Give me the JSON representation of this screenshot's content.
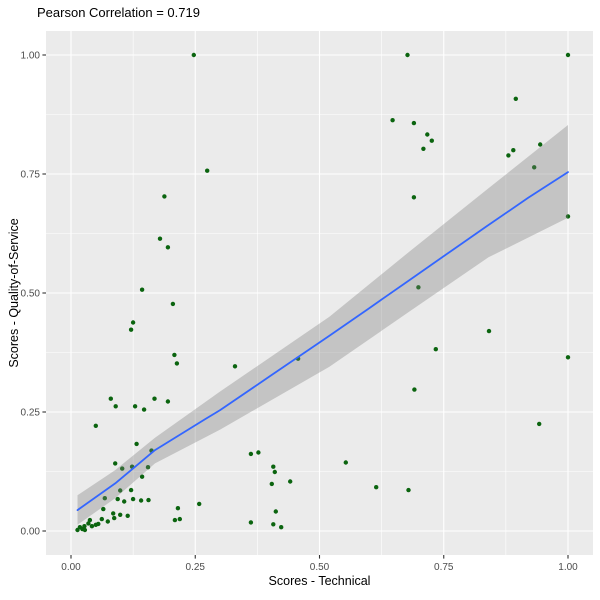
{
  "title": "Pearson Correlation = 0.719",
  "correlation": 0.719,
  "chart_data": {
    "type": "scatter",
    "title": "Pearson Correlation = 0.719",
    "xlabel": "Scores - Technical",
    "ylabel": "Scores - Quality-of-Service",
    "xlim": [
      -0.05,
      1.05
    ],
    "ylim": [
      -0.05,
      1.05
    ],
    "grid": "white-major-minor-on-gray",
    "legend": "none",
    "x_ticks": [
      0,
      0.25,
      0.5,
      0.75,
      1.0
    ],
    "y_ticks": [
      0,
      0.25,
      0.5,
      0.75,
      1.0
    ],
    "x_tick_labels": [
      "0.00",
      "0.25",
      "0.50",
      "0.75",
      "1.00"
    ],
    "y_tick_labels": [
      "0.00",
      "0.25",
      "0.50",
      "0.75",
      "1.00"
    ],
    "minor_ticks": [
      0.125,
      0.375,
      0.625,
      0.875
    ],
    "colors": {
      "panel_bg": "#EBEBEB",
      "grid": "#FFFFFF",
      "point": "#0B640F",
      "trend_line": "#3366FF",
      "band": "rgba(122,122,122,0.35)",
      "tick_label": "#4D4D4D",
      "tick_mark": "#333333",
      "axis_title": "#000000"
    },
    "points": [
      [
        0.05,
        0.221
      ],
      [
        0.132,
        0.183
      ],
      [
        0.162,
        0.169
      ],
      [
        0.089,
        0.142
      ],
      [
        0.103,
        0.131
      ],
      [
        0.123,
        0.135
      ],
      [
        0.155,
        0.134
      ],
      [
        0.143,
        0.114
      ],
      [
        0.099,
        0.085
      ],
      [
        0.121,
        0.086
      ],
      [
        0.068,
        0.069
      ],
      [
        0.094,
        0.067
      ],
      [
        0.107,
        0.062
      ],
      [
        0.125,
        0.067
      ],
      [
        0.141,
        0.064
      ],
      [
        0.156,
        0.065
      ],
      [
        0.258,
        0.057
      ],
      [
        0.215,
        0.048
      ],
      [
        0.065,
        0.046
      ],
      [
        0.085,
        0.037
      ],
      [
        0.099,
        0.034
      ],
      [
        0.114,
        0.032
      ],
      [
        0.087,
        0.027
      ],
      [
        0.062,
        0.025
      ],
      [
        0.074,
        0.02
      ],
      [
        0.209,
        0.023
      ],
      [
        0.219,
        0.025
      ],
      [
        0.038,
        0.023
      ],
      [
        0.035,
        0.016
      ],
      [
        0.027,
        0.01
      ],
      [
        0.042,
        0.01
      ],
      [
        0.05,
        0.013
      ],
      [
        0.055,
        0.015
      ],
      [
        0.018,
        0.008
      ],
      [
        0.023,
        0.004
      ],
      [
        0.028,
        0.002
      ],
      [
        0.013,
        0.002
      ],
      [
        0.247,
        1.0
      ],
      [
        0.274,
        0.757
      ],
      [
        0.188,
        0.703
      ],
      [
        0.179,
        0.614
      ],
      [
        0.195,
        0.596
      ],
      [
        0.143,
        0.507
      ],
      [
        0.205,
        0.477
      ],
      [
        0.125,
        0.438
      ],
      [
        0.121,
        0.423
      ],
      [
        0.208,
        0.37
      ],
      [
        0.213,
        0.352
      ],
      [
        0.08,
        0.278
      ],
      [
        0.09,
        0.262
      ],
      [
        0.129,
        0.262
      ],
      [
        0.147,
        0.255
      ],
      [
        0.168,
        0.278
      ],
      [
        0.195,
        0.272
      ],
      [
        0.677,
        1.0
      ],
      [
        0.647,
        0.863
      ],
      [
        0.33,
        0.346
      ],
      [
        0.457,
        0.362
      ],
      [
        0.362,
        0.162
      ],
      [
        0.377,
        0.165
      ],
      [
        0.407,
        0.135
      ],
      [
        0.41,
        0.124
      ],
      [
        0.404,
        0.099
      ],
      [
        0.441,
        0.104
      ],
      [
        0.553,
        0.144
      ],
      [
        0.614,
        0.092
      ],
      [
        0.679,
        0.086
      ],
      [
        0.412,
        0.041
      ],
      [
        0.362,
        0.018
      ],
      [
        0.407,
        0.014
      ],
      [
        0.423,
        0.008
      ],
      [
        1.0,
        1.0
      ],
      [
        0.895,
        0.908
      ],
      [
        0.69,
        0.857
      ],
      [
        0.717,
        0.833
      ],
      [
        0.726,
        0.82
      ],
      [
        0.709,
        0.803
      ],
      [
        0.944,
        0.812
      ],
      [
        0.89,
        0.8
      ],
      [
        0.88,
        0.789
      ],
      [
        0.932,
        0.764
      ],
      [
        0.69,
        0.701
      ],
      [
        1.0,
        0.661
      ],
      [
        0.699,
        0.512
      ],
      [
        0.841,
        0.42
      ],
      [
        0.734,
        0.382
      ],
      [
        1.0,
        0.365
      ],
      [
        0.691,
        0.297
      ],
      [
        0.942,
        0.225
      ]
    ],
    "trend_line": [
      [
        0.013,
        0.044
      ],
      [
        0.089,
        0.1
      ],
      [
        0.169,
        0.17
      ],
      [
        0.27,
        0.235
      ],
      [
        0.3,
        0.254
      ],
      [
        0.4,
        0.325
      ],
      [
        0.52,
        0.41
      ],
      [
        0.6,
        0.468
      ],
      [
        0.682,
        0.528
      ],
      [
        0.77,
        0.592
      ],
      [
        0.836,
        0.64
      ],
      [
        0.92,
        0.7
      ],
      [
        1.0,
        0.754
      ]
    ],
    "band_upper": [
      [
        0.013,
        0.075
      ],
      [
        0.089,
        0.128
      ],
      [
        0.169,
        0.196
      ],
      [
        0.3,
        0.293
      ],
      [
        0.52,
        0.45
      ],
      [
        0.682,
        0.588
      ],
      [
        0.84,
        0.72
      ],
      [
        1.0,
        0.853
      ]
    ],
    "band_lower": [
      [
        0.013,
        0.013
      ],
      [
        0.089,
        0.069
      ],
      [
        0.169,
        0.142
      ],
      [
        0.3,
        0.213
      ],
      [
        0.52,
        0.345
      ],
      [
        0.682,
        0.462
      ],
      [
        0.84,
        0.575
      ],
      [
        1.0,
        0.658
      ]
    ]
  }
}
